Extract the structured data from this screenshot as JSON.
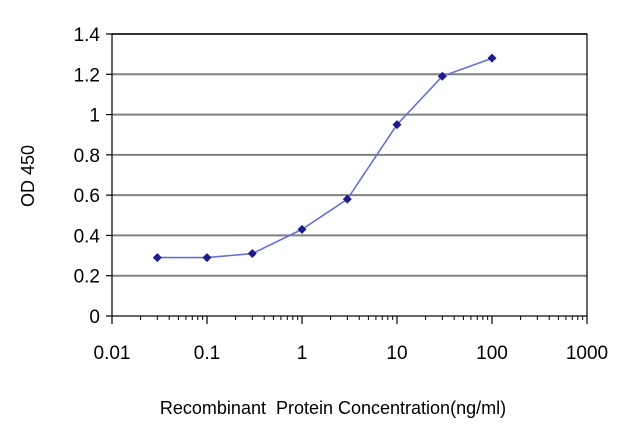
{
  "chart_data": {
    "type": "line",
    "title": "",
    "xlabel": "Recombinant  Protein Concentration(ng/ml)",
    "ylabel": "OD 450",
    "x_scale": "log",
    "xlim": [
      0.01,
      1000
    ],
    "ylim": [
      0,
      1.4
    ],
    "x_ticks": [
      0.01,
      0.1,
      1,
      10,
      100,
      1000
    ],
    "x_tick_labels": [
      "0.01",
      "0.1",
      "1",
      "10",
      "100",
      "1000"
    ],
    "y_ticks": [
      0,
      0.2,
      0.4,
      0.6,
      0.8,
      1,
      1.2,
      1.4
    ],
    "y_tick_labels": [
      "0",
      "0.2",
      "0.4",
      "0.6",
      "0.8",
      "1",
      "1.2",
      "1.4"
    ],
    "grid": "horizontal",
    "legend": "none",
    "series": [
      {
        "x": [
          0.03,
          0.1,
          0.3,
          1,
          3,
          10,
          30,
          100
        ],
        "y": [
          0.29,
          0.29,
          0.31,
          0.43,
          0.58,
          0.95,
          1.19,
          1.28
        ]
      }
    ],
    "colors": {
      "line": "#6670d8",
      "marker": "#1c1c8c",
      "grid": "#808080"
    }
  }
}
